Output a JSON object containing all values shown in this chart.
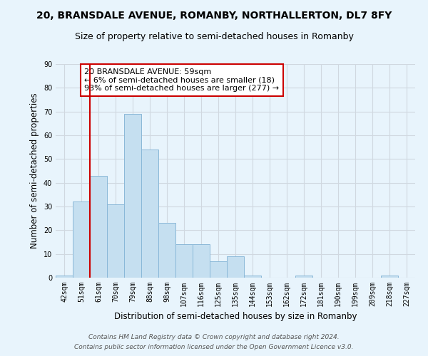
{
  "title": "20, BRANSDALE AVENUE, ROMANBY, NORTHALLERTON, DL7 8FY",
  "subtitle": "Size of property relative to semi-detached houses in Romanby",
  "bar_labels": [
    "42sqm",
    "51sqm",
    "61sqm",
    "70sqm",
    "79sqm",
    "88sqm",
    "98sqm",
    "107sqm",
    "116sqm",
    "125sqm",
    "135sqm",
    "144sqm",
    "153sqm",
    "162sqm",
    "172sqm",
    "181sqm",
    "190sqm",
    "199sqm",
    "209sqm",
    "218sqm",
    "227sqm"
  ],
  "bar_values": [
    1,
    32,
    43,
    31,
    69,
    54,
    23,
    14,
    14,
    7,
    9,
    1,
    0,
    0,
    1,
    0,
    0,
    0,
    0,
    1,
    0
  ],
  "bar_color": "#c5dff0",
  "bar_edge_color": "#8ab8d8",
  "red_line_index": 2,
  "ylim": [
    0,
    90
  ],
  "yticks": [
    0,
    10,
    20,
    30,
    40,
    50,
    60,
    70,
    80,
    90
  ],
  "ylabel": "Number of semi-detached properties",
  "xlabel": "Distribution of semi-detached houses by size in Romanby",
  "annotation_title": "20 BRANSDALE AVENUE: 59sqm",
  "annotation_line1": "← 6% of semi-detached houses are smaller (18)",
  "annotation_line2": "93% of semi-detached houses are larger (277) →",
  "annotation_box_color": "#ffffff",
  "annotation_border_color": "#cc0000",
  "footer1": "Contains HM Land Registry data © Crown copyright and database right 2024.",
  "footer2": "Contains public sector information licensed under the Open Government Licence v3.0.",
  "background_color": "#e8f4fc",
  "grid_color": "#d0d8e0",
  "title_fontsize": 10,
  "subtitle_fontsize": 9,
  "axis_label_fontsize": 8.5,
  "tick_fontsize": 7,
  "annotation_fontsize": 8,
  "footer_fontsize": 6.5
}
